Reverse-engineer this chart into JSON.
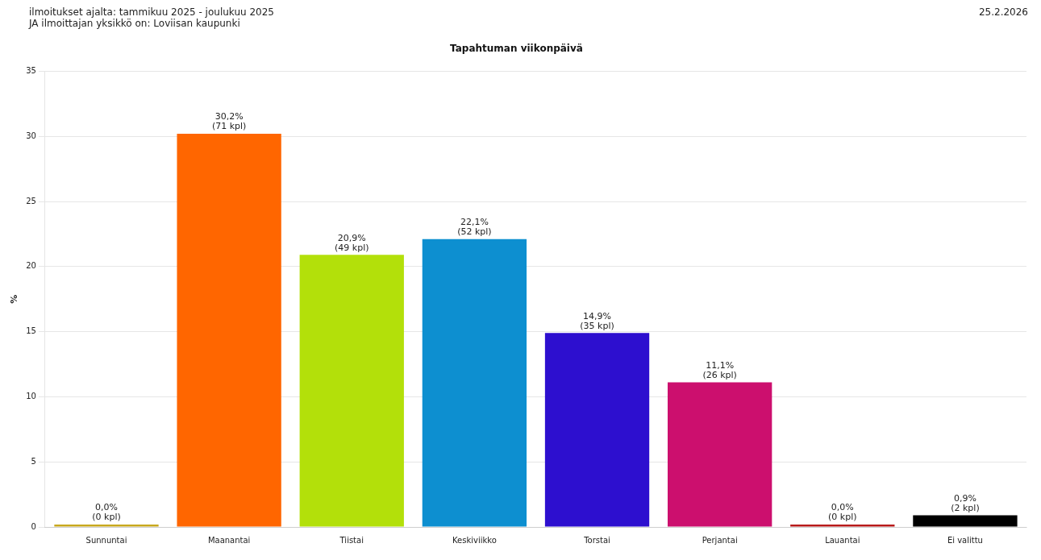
{
  "chart_data": {
    "type": "bar",
    "title": "Tapahtuman viikonpäivä",
    "ylabel": "%",
    "annotations": [
      "ilmoitukset ajalta: tammikuu 2025 - joulukuu 2025",
      "JA ilmoittajan yksikkö on: Loviisan kaupunki",
      "25.2.2026"
    ],
    "categories": [
      "Sunnuntai",
      "Maanantai",
      "Tiistai",
      "Keskiviikko",
      "Torstai",
      "Perjantai",
      "Lauantai",
      "Ei valittu"
    ],
    "values": [
      0,
      30.2,
      20.9,
      22.1,
      14.9,
      11.1,
      0,
      0.9
    ],
    "colors": [
      "#c8a81e",
      "#ff6600",
      "#b3e00a",
      "#0d8fd0",
      "#2d0fcf",
      "#cc0f6e",
      "#b81a1a",
      "#000000"
    ],
    "value_labels": [
      "0,0%\n(0 kpl)",
      "30,2%\n(71 kpl)",
      "20,9%\n(49 kpl)",
      "22,1%\n(52 kpl)",
      "14,9%\n(35 kpl)",
      "11,1%\n(26 kpl)",
      "0,0%\n(0 kpl)",
      "0,9%\n(2 kpl)"
    ],
    "ylim": [
      0,
      35
    ],
    "yticks": [
      0,
      5,
      10,
      15,
      20,
      25,
      30,
      35
    ],
    "grid": "y",
    "legend": false
  }
}
